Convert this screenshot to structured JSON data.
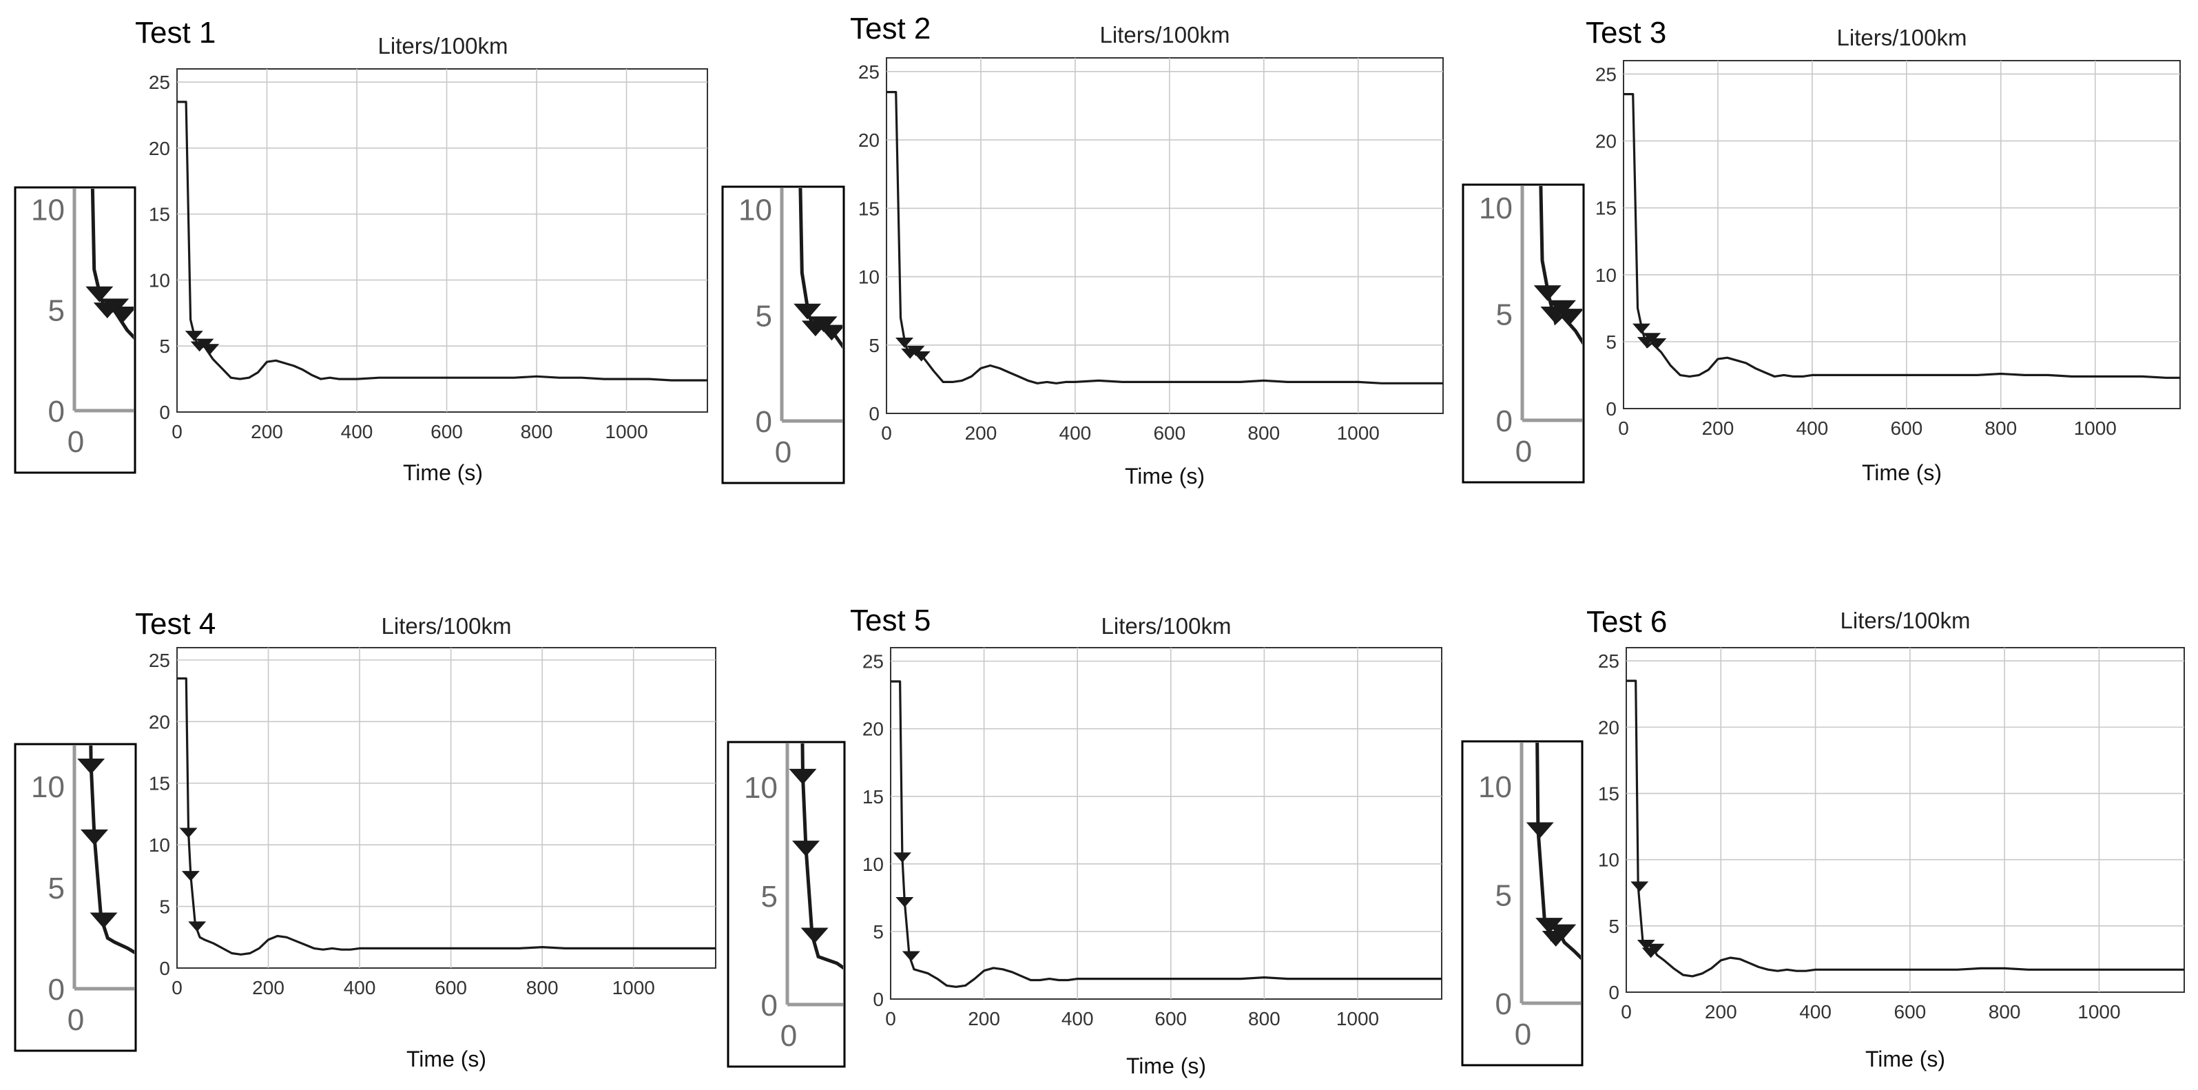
{
  "colors": {
    "background": "#ffffff",
    "line": "#1a1a1a",
    "grid": "#c8c8c8",
    "axis": "#333333",
    "inset_axis": "#9a9a9a"
  },
  "marker_shape": "down-triangle",
  "chart_data": [
    {
      "type": "line",
      "test_label": "Test 1",
      "title": "Liters/100km",
      "xlabel": "Time (s)",
      "ylabel": "",
      "xlim": [
        0,
        1180
      ],
      "ylim": [
        0,
        26
      ],
      "xticks": [
        0,
        200,
        400,
        600,
        800,
        1000
      ],
      "yticks": [
        0,
        5,
        10,
        15,
        20,
        25
      ],
      "grid": true,
      "series": [
        {
          "x": [
            0,
            20,
            30,
            40,
            50,
            60,
            80,
            100,
            120,
            140,
            160,
            180,
            200,
            220,
            240,
            260,
            280,
            300,
            320,
            340,
            360,
            380,
            400,
            450,
            500,
            550,
            600,
            650,
            700,
            750,
            800,
            850,
            900,
            950,
            1000,
            1050,
            1100,
            1150,
            1180
          ],
          "y": [
            23.5,
            23.5,
            7.0,
            5.6,
            4.8,
            5.0,
            4.0,
            3.3,
            2.6,
            2.5,
            2.6,
            3.0,
            3.8,
            3.9,
            3.7,
            3.5,
            3.2,
            2.8,
            2.5,
            2.6,
            2.5,
            2.5,
            2.5,
            2.6,
            2.6,
            2.6,
            2.6,
            2.6,
            2.6,
            2.6,
            2.7,
            2.6,
            2.6,
            2.5,
            2.5,
            2.5,
            2.4,
            2.4,
            2.4
          ]
        }
      ],
      "markers": [
        {
          "x": 38,
          "y": 5.8
        },
        {
          "x": 50,
          "y": 5.0
        },
        {
          "x": 62,
          "y": 5.2
        },
        {
          "x": 74,
          "y": 4.8
        }
      ],
      "inset": {
        "yticks": [
          0,
          5,
          10
        ],
        "xticks": [
          0
        ],
        "ylim": [
          0,
          11
        ],
        "xlim": [
          0,
          90
        ]
      }
    },
    {
      "type": "line",
      "test_label": "Test 2",
      "title": "Liters/100km",
      "xlabel": "Time (s)",
      "ylabel": "",
      "xlim": [
        0,
        1180
      ],
      "ylim": [
        0,
        26
      ],
      "xticks": [
        0,
        200,
        400,
        600,
        800,
        1000
      ],
      "yticks": [
        0,
        5,
        10,
        15,
        20,
        25
      ],
      "grid": true,
      "series": [
        {
          "x": [
            0,
            20,
            30,
            40,
            50,
            60,
            80,
            100,
            120,
            140,
            160,
            180,
            200,
            220,
            240,
            260,
            280,
            300,
            320,
            340,
            360,
            380,
            400,
            450,
            500,
            550,
            600,
            650,
            700,
            750,
            800,
            850,
            900,
            950,
            1000,
            1050,
            1100,
            1150,
            1180
          ],
          "y": [
            23.5,
            23.5,
            7.0,
            5.0,
            4.3,
            4.5,
            4.0,
            3.1,
            2.3,
            2.3,
            2.4,
            2.7,
            3.3,
            3.5,
            3.3,
            3.0,
            2.7,
            2.4,
            2.2,
            2.3,
            2.2,
            2.3,
            2.3,
            2.4,
            2.3,
            2.3,
            2.3,
            2.3,
            2.3,
            2.3,
            2.4,
            2.3,
            2.3,
            2.3,
            2.3,
            2.2,
            2.2,
            2.2,
            2.2
          ]
        }
      ],
      "markers": [
        {
          "x": 38,
          "y": 5.2
        },
        {
          "x": 50,
          "y": 4.4
        },
        {
          "x": 62,
          "y": 4.6
        },
        {
          "x": 74,
          "y": 4.2
        }
      ],
      "inset": {
        "yticks": [
          0,
          5,
          10
        ],
        "xticks": [
          0
        ],
        "ylim": [
          0,
          11
        ],
        "xlim": [
          0,
          90
        ]
      }
    },
    {
      "type": "line",
      "test_label": "Test 3",
      "title": "Liters/100km",
      "xlabel": "Time (s)",
      "ylabel": "",
      "xlim": [
        0,
        1180
      ],
      "ylim": [
        0,
        26
      ],
      "xticks": [
        0,
        200,
        400,
        600,
        800,
        1000
      ],
      "yticks": [
        0,
        5,
        10,
        15,
        20,
        25
      ],
      "grid": true,
      "series": [
        {
          "x": [
            0,
            20,
            30,
            40,
            50,
            60,
            80,
            100,
            120,
            140,
            160,
            180,
            200,
            220,
            240,
            260,
            280,
            300,
            320,
            340,
            360,
            380,
            400,
            450,
            500,
            550,
            600,
            650,
            700,
            750,
            800,
            850,
            900,
            950,
            1000,
            1050,
            1100,
            1150,
            1180
          ],
          "y": [
            23.5,
            23.5,
            7.5,
            5.8,
            4.6,
            4.9,
            4.2,
            3.2,
            2.5,
            2.4,
            2.5,
            2.9,
            3.7,
            3.8,
            3.6,
            3.4,
            3.0,
            2.7,
            2.4,
            2.5,
            2.4,
            2.4,
            2.5,
            2.5,
            2.5,
            2.5,
            2.5,
            2.5,
            2.5,
            2.5,
            2.6,
            2.5,
            2.5,
            2.4,
            2.4,
            2.4,
            2.4,
            2.3,
            2.3
          ]
        }
      ],
      "markers": [
        {
          "x": 38,
          "y": 6.0
        },
        {
          "x": 48,
          "y": 5.0
        },
        {
          "x": 60,
          "y": 5.3
        },
        {
          "x": 72,
          "y": 4.9
        }
      ],
      "inset": {
        "yticks": [
          0,
          5,
          10
        ],
        "xticks": [
          0
        ],
        "ylim": [
          0,
          11
        ],
        "xlim": [
          0,
          90
        ]
      }
    },
    {
      "type": "line",
      "test_label": "Test 4",
      "title": "Liters/100km",
      "xlabel": "Time (s)",
      "ylabel": "",
      "xlim": [
        0,
        1180
      ],
      "ylim": [
        0,
        26
      ],
      "xticks": [
        0,
        200,
        400,
        600,
        800,
        1000
      ],
      "yticks": [
        0,
        5,
        10,
        15,
        20,
        25
      ],
      "grid": true,
      "series": [
        {
          "x": [
            0,
            20,
            25,
            30,
            40,
            50,
            60,
            80,
            100,
            120,
            140,
            160,
            180,
            200,
            220,
            240,
            260,
            280,
            300,
            320,
            340,
            360,
            380,
            400,
            450,
            500,
            550,
            600,
            650,
            700,
            750,
            800,
            850,
            900,
            950,
            1000,
            1050,
            1100,
            1150,
            1180
          ],
          "y": [
            23.5,
            23.5,
            11.0,
            7.5,
            3.5,
            2.5,
            2.3,
            2.0,
            1.6,
            1.2,
            1.1,
            1.2,
            1.6,
            2.3,
            2.6,
            2.5,
            2.2,
            1.9,
            1.6,
            1.5,
            1.6,
            1.5,
            1.5,
            1.6,
            1.6,
            1.6,
            1.6,
            1.6,
            1.6,
            1.6,
            1.6,
            1.7,
            1.6,
            1.6,
            1.6,
            1.6,
            1.6,
            1.6,
            1.6,
            1.6
          ]
        }
      ],
      "markers": [
        {
          "x": 25,
          "y": 11.0
        },
        {
          "x": 30,
          "y": 7.5
        },
        {
          "x": 44,
          "y": 3.4
        }
      ],
      "inset": {
        "yticks": [
          0,
          5,
          10
        ],
        "xticks": [
          0
        ],
        "ylim": [
          0,
          12
        ],
        "xlim": [
          0,
          90
        ]
      }
    },
    {
      "type": "line",
      "test_label": "Test 5",
      "title": "Liters/100km",
      "xlabel": "Time (s)",
      "ylabel": "",
      "xlim": [
        0,
        1180
      ],
      "ylim": [
        0,
        26
      ],
      "xticks": [
        0,
        200,
        400,
        600,
        800,
        1000
      ],
      "yticks": [
        0,
        5,
        10,
        15,
        20,
        25
      ],
      "grid": true,
      "series": [
        {
          "x": [
            0,
            20,
            25,
            30,
            40,
            50,
            60,
            80,
            100,
            120,
            140,
            160,
            180,
            200,
            220,
            240,
            260,
            280,
            300,
            320,
            340,
            360,
            380,
            400,
            450,
            500,
            550,
            600,
            650,
            700,
            750,
            800,
            850,
            900,
            950,
            1000,
            1050,
            1100,
            1150,
            1180
          ],
          "y": [
            23.5,
            23.5,
            10.5,
            7.2,
            3.2,
            2.2,
            2.1,
            1.9,
            1.5,
            1.0,
            0.9,
            1.0,
            1.5,
            2.1,
            2.3,
            2.2,
            2.0,
            1.7,
            1.4,
            1.4,
            1.5,
            1.4,
            1.4,
            1.5,
            1.5,
            1.5,
            1.5,
            1.5,
            1.5,
            1.5,
            1.5,
            1.6,
            1.5,
            1.5,
            1.5,
            1.5,
            1.5,
            1.5,
            1.5,
            1.5
          ]
        }
      ],
      "markers": [
        {
          "x": 25,
          "y": 10.5
        },
        {
          "x": 30,
          "y": 7.2
        },
        {
          "x": 44,
          "y": 3.2
        }
      ],
      "inset": {
        "yticks": [
          0,
          5,
          10
        ],
        "xticks": [
          0
        ],
        "ylim": [
          0,
          12
        ],
        "xlim": [
          0,
          90
        ]
      }
    },
    {
      "type": "line",
      "test_label": "Test 6",
      "title": "Liters/100km",
      "xlabel": "Time (s)",
      "ylabel": "",
      "xlim": [
        0,
        1180
      ],
      "ylim": [
        0,
        26
      ],
      "xticks": [
        0,
        200,
        400,
        600,
        800,
        1000
      ],
      "yticks": [
        0,
        5,
        10,
        15,
        20,
        25
      ],
      "grid": true,
      "series": [
        {
          "x": [
            0,
            20,
            25,
            35,
            45,
            55,
            65,
            80,
            100,
            120,
            140,
            160,
            180,
            200,
            220,
            240,
            260,
            280,
            300,
            320,
            340,
            360,
            380,
            400,
            450,
            500,
            550,
            600,
            650,
            700,
            750,
            800,
            850,
            900,
            950,
            1000,
            1050,
            1100,
            1150,
            1180
          ],
          "y": [
            23.5,
            23.5,
            8.0,
            3.8,
            3.0,
            3.4,
            2.8,
            2.4,
            1.8,
            1.3,
            1.2,
            1.4,
            1.8,
            2.4,
            2.6,
            2.5,
            2.2,
            1.9,
            1.7,
            1.6,
            1.7,
            1.6,
            1.6,
            1.7,
            1.7,
            1.7,
            1.7,
            1.7,
            1.7,
            1.7,
            1.8,
            1.8,
            1.7,
            1.7,
            1.7,
            1.7,
            1.7,
            1.7,
            1.7,
            1.7
          ]
        }
      ],
      "markers": [
        {
          "x": 28,
          "y": 8.0
        },
        {
          "x": 42,
          "y": 3.6
        },
        {
          "x": 52,
          "y": 3.0
        },
        {
          "x": 62,
          "y": 3.3
        }
      ],
      "inset": {
        "yticks": [
          0,
          5,
          10
        ],
        "xticks": [
          0
        ],
        "ylim": [
          0,
          12
        ],
        "xlim": [
          0,
          90
        ]
      }
    }
  ]
}
